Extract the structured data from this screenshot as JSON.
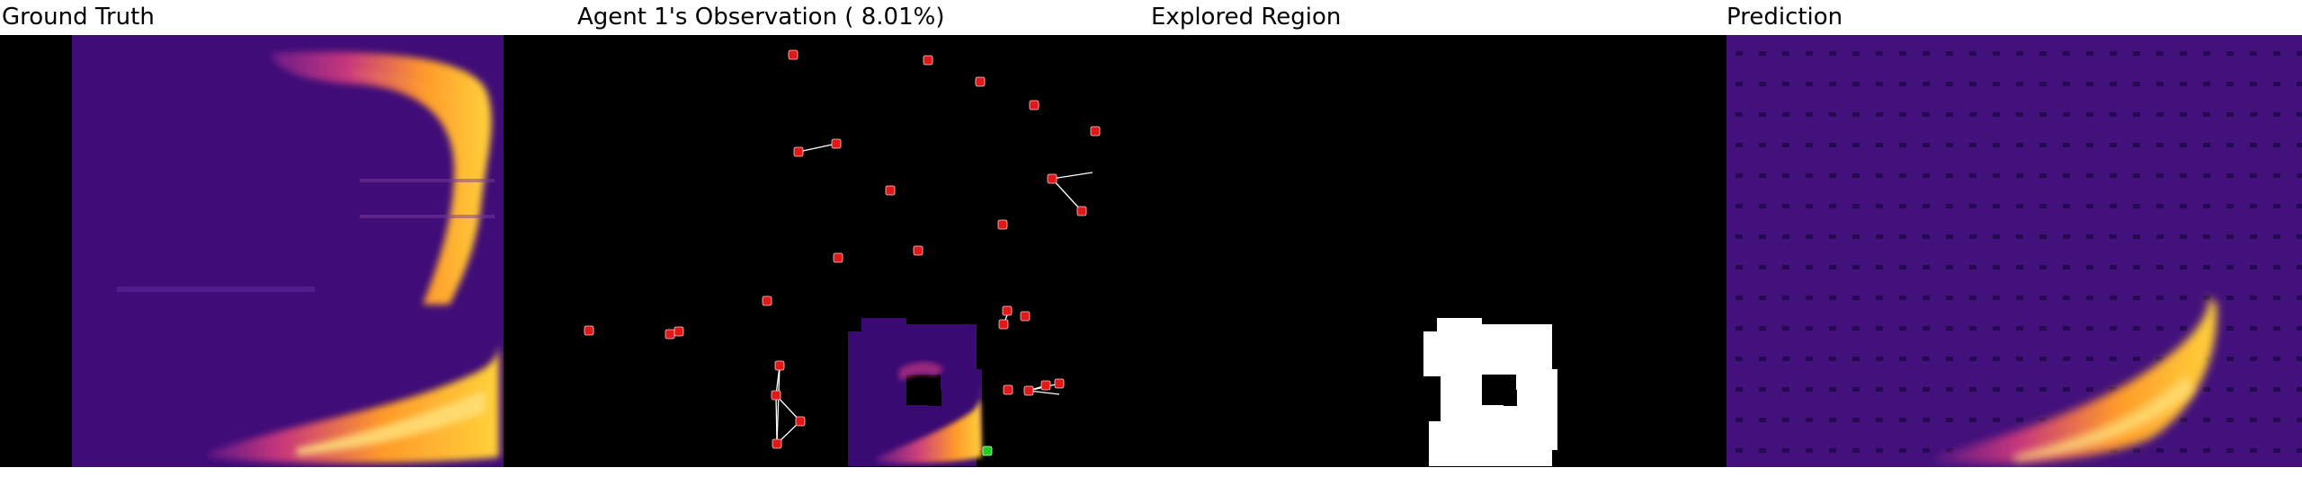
{
  "titles": {
    "ground_truth": "Ground Truth",
    "observation": "Agent 1's Observation ( 8.01%)",
    "explored": "Explored Region",
    "prediction": "Prediction"
  },
  "observation_coverage_percent": 8.01,
  "colors": {
    "background": "#000000",
    "field_low": "#3a0a73",
    "field_mid": "#c7367c",
    "field_high": "#ffd23a",
    "agent_marker": "#e01818",
    "self_marker": "#22cc22",
    "link_line": "#ffffff",
    "explored_fill": "#ffffff"
  },
  "icons": {
    "agent_marker": "red-square-marker-icon",
    "self_marker": "green-square-marker-icon"
  }
}
